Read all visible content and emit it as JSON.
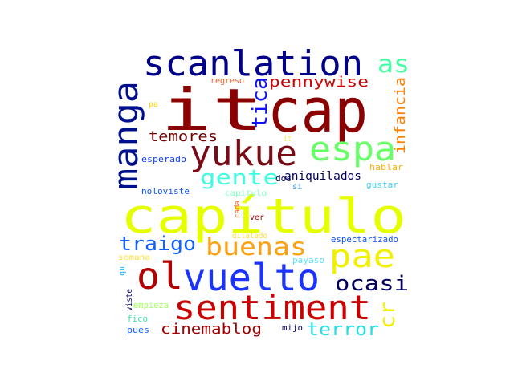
{
  "words": [
    {
      "text": "capítulo",
      "color": "#e6ff00"
    },
    {
      "text": "cap",
      "color": "#8b0000"
    },
    {
      "text": "it",
      "color": "#8b0000"
    },
    {
      "text": "scanlation",
      "color": "#00008b"
    },
    {
      "text": "sentiment",
      "color": "#cc0000"
    },
    {
      "text": "vuelto",
      "color": "#1a33ff"
    },
    {
      "text": "yukue",
      "color": "#7a0a14"
    },
    {
      "text": "manga",
      "color": "#00108c"
    },
    {
      "text": "espa",
      "color": "#66ff66"
    },
    {
      "text": "ol",
      "color": "#b00000"
    },
    {
      "text": "pae",
      "color": "#f0f000"
    },
    {
      "text": "buenas",
      "color": "#ffa010"
    },
    {
      "text": "as",
      "color": "#40ffa0"
    },
    {
      "text": "gente",
      "color": "#40ffe0"
    },
    {
      "text": "traigo",
      "color": "#1060ff"
    },
    {
      "text": "ocasi",
      "color": "#00005a"
    },
    {
      "text": "terror",
      "color": "#20e0e0"
    },
    {
      "text": "cinemablog",
      "color": "#a00000"
    },
    {
      "text": "cr",
      "color": "#f0f000"
    },
    {
      "text": "tica",
      "color": "#1010ff"
    },
    {
      "text": "pennywise",
      "color": "#d00000"
    },
    {
      "text": "infancia",
      "color": "#ff8000"
    },
    {
      "text": "temores",
      "color": "#700000"
    },
    {
      "text": "aniquilados",
      "color": "#00005a"
    },
    {
      "text": "regreso",
      "color": "#ff6020"
    },
    {
      "text": "pa",
      "color": "#ffd000"
    },
    {
      "text": "it",
      "color": "#f0f040"
    },
    {
      "text": "esperado",
      "color": "#1040ff"
    },
    {
      "text": "hablar",
      "color": "#ffb000"
    },
    {
      "text": "gustar",
      "color": "#40d0ff"
    },
    {
      "text": "dos",
      "color": "#00005a"
    },
    {
      "text": "si",
      "color": "#40a0ff"
    },
    {
      "text": "noloviste",
      "color": "#1050ff"
    },
    {
      "text": "capitulo",
      "color": "#80ffc0"
    },
    {
      "text": "cada",
      "color": "#ff6020"
    },
    {
      "text": "ver",
      "color": "#a00000"
    },
    {
      "text": "espectarizado",
      "color": "#1050ff"
    },
    {
      "text": "dilatado",
      "color": "#ffe040"
    },
    {
      "text": "semana",
      "color": "#ffe040"
    },
    {
      "text": "payaso",
      "color": "#60e0ff"
    },
    {
      "text": "qu",
      "color": "#20b0ff"
    },
    {
      "text": "viste",
      "color": "#00005a"
    },
    {
      "text": "empieza",
      "color": "#a0ff60"
    },
    {
      "text": "fico",
      "color": "#40e0b0"
    },
    {
      "text": "pues",
      "color": "#1060ff"
    },
    {
      "text": "mijo",
      "color": "#00006a"
    }
  ]
}
